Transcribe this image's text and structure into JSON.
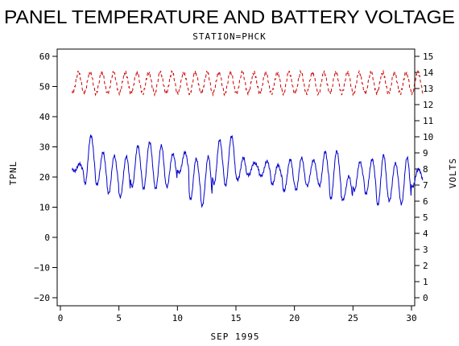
{
  "chart_data": {
    "type": "line",
    "title": "PANEL TEMPERATURE AND BATTERY VOLTAGE",
    "subtitle": "STATION=PHCK",
    "xlabel": "SEP 1995",
    "ylabel_left": "TPNL",
    "ylabel_right": "VOLTS",
    "xlim": [
      0,
      30
    ],
    "ylim_left": [
      -20,
      60
    ],
    "ylim_right": [
      0,
      15
    ],
    "x_ticks": [
      0,
      5,
      10,
      15,
      20,
      25,
      30
    ],
    "y_left_ticks": [
      -20,
      -10,
      0,
      10,
      20,
      30,
      40,
      50,
      60
    ],
    "y_right_ticks": [
      0,
      1,
      2,
      3,
      4,
      5,
      6,
      7,
      8,
      9,
      10,
      11,
      12,
      13,
      14,
      15
    ],
    "series": [
      {
        "axis": "left",
        "color": "#0000cc",
        "style": "solid",
        "daily_min": [
          22,
          18,
          17,
          15,
          13,
          17,
          16,
          16,
          17,
          21,
          13,
          10,
          18,
          17,
          19,
          21,
          20,
          18,
          15,
          16,
          17,
          17,
          13,
          12,
          16,
          14,
          11,
          12,
          11,
          17
        ],
        "daily_max": [
          24,
          34,
          28,
          27,
          27,
          30,
          32,
          30,
          28,
          28,
          26,
          27,
          32,
          34,
          26,
          25,
          25,
          24,
          26,
          26,
          26,
          28,
          29,
          20,
          25,
          26,
          27,
          25,
          26,
          23
        ]
      },
      {
        "axis": "right",
        "color": "#cc0000",
        "style": "dashed",
        "min": 12.7,
        "max": 14.0
      }
    ]
  }
}
